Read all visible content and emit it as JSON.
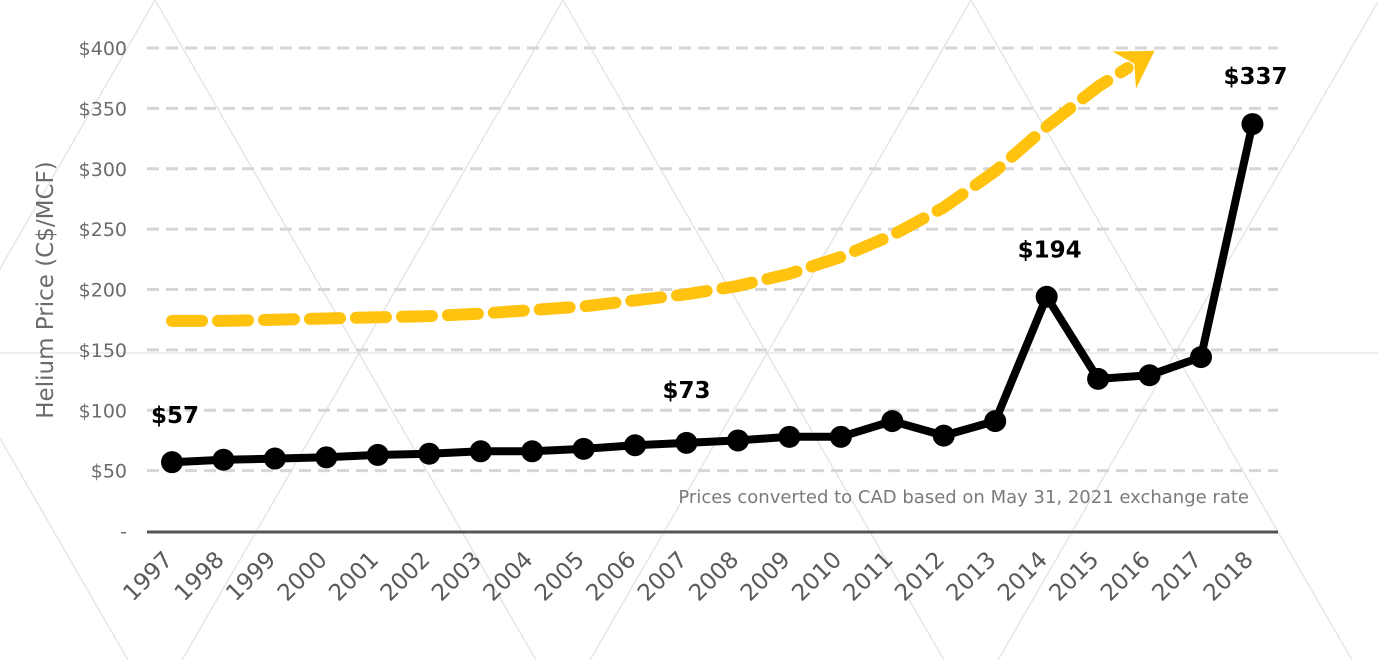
{
  "chart_data": {
    "type": "line",
    "title": "",
    "xlabel": "",
    "ylabel": "Helium Price (C$/MCF)",
    "categories": [
      "1997",
      "1998",
      "1999",
      "2000",
      "2001",
      "2002",
      "2003",
      "2004",
      "2005",
      "2006",
      "2007",
      "2008",
      "2009",
      "2010",
      "2011",
      "2012",
      "2013",
      "2014",
      "2015",
      "2016",
      "2017",
      "2018"
    ],
    "yticks": [
      "-",
      "$50",
      "$100",
      "$150",
      "$200",
      "$250",
      "$300",
      "$350",
      "$400"
    ],
    "ytick_values": [
      0,
      50,
      100,
      150,
      200,
      250,
      300,
      350,
      400
    ],
    "ylim": [
      0,
      400
    ],
    "grid": true,
    "series": [
      {
        "color": "#000000",
        "values": [
          57,
          59,
          60,
          61,
          63,
          64,
          66,
          66,
          68,
          71,
          73,
          75,
          78,
          78,
          91,
          79,
          91,
          194,
          126,
          129,
          144,
          337
        ]
      }
    ],
    "trend": {
      "color": "#ffc20e",
      "style": "dashed-arrow",
      "x": [
        1997,
        1998,
        1999,
        2000,
        2001,
        2002,
        2003,
        2004,
        2005,
        2006,
        2007,
        2008,
        2009,
        2010,
        2011,
        2012,
        2013,
        2014,
        2015,
        2016
      ],
      "values": [
        174,
        174,
        175,
        176,
        177,
        178,
        180,
        183,
        186,
        191,
        196,
        203,
        213,
        227,
        245,
        268,
        298,
        335,
        368,
        395
      ]
    },
    "data_labels": [
      {
        "category": "1997",
        "text": "$57"
      },
      {
        "category": "2007",
        "text": "$73"
      },
      {
        "category": "2014",
        "text": "$194"
      },
      {
        "category": "2018",
        "text": "$337"
      }
    ],
    "annotation": "Prices converted to CAD based on May 31, 2021 exchange rate"
  }
}
